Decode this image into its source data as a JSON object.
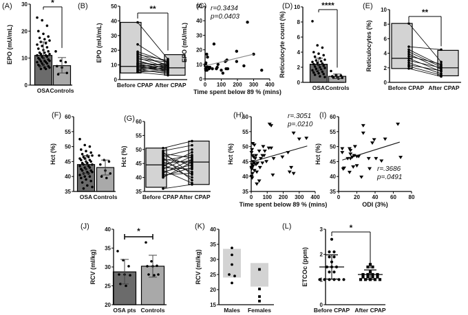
{
  "figure": {
    "colors": {
      "dark_bar": "#6b6b6b",
      "light_bar": "#a9a9a9",
      "box_fill": "#d3d3d3",
      "ink": "#000000",
      "line": "#333333"
    }
  },
  "chart_data": [
    {
      "id": "A",
      "panel_label": "(A)",
      "type": "bar",
      "ylabel": "EPO (mU/mL)",
      "ylim": [
        0,
        30
      ],
      "yticks": [
        0,
        10,
        20,
        30
      ],
      "categories": [
        "OSA",
        "Controls"
      ],
      "bar_means": [
        11,
        7.2
      ],
      "error_sd": [
        [
          7,
          16
        ],
        [
          4.5,
          10.2
        ]
      ],
      "points": [
        [
          25,
          24,
          22,
          20,
          19,
          18,
          17.5,
          17,
          16.5,
          16,
          15.5,
          15,
          14.5,
          14,
          13.5,
          13,
          12.5,
          12,
          12,
          11.5,
          11.5,
          11,
          11,
          10.5,
          10.5,
          10,
          10,
          9.5,
          9.5,
          9,
          9,
          8.8,
          8.5,
          8.5,
          8,
          8,
          7.5,
          7.5,
          7,
          7,
          6.5,
          6.5,
          6,
          6
        ],
        [
          12.5,
          9,
          8.5,
          7,
          6.5,
          4.5,
          4
        ]
      ],
      "significance": "*"
    },
    {
      "id": "B",
      "panel_label": "(B)",
      "type": "box-paired",
      "ylabel": "EPO (mU/mL)",
      "ylim": [
        0,
        50
      ],
      "yticks": [
        0,
        10,
        20,
        30,
        40,
        50
      ],
      "categories": [
        "Before CPAP",
        "After CPAP"
      ],
      "box": [
        {
          "min": 4.5,
          "median": 9,
          "max": 39
        },
        {
          "min": 3,
          "median": 8,
          "max": 17
        }
      ],
      "pairs": [
        [
          39,
          14
        ],
        [
          24,
          11
        ],
        [
          19,
          12
        ],
        [
          18,
          9
        ],
        [
          17,
          13
        ],
        [
          16,
          10
        ],
        [
          15,
          8
        ],
        [
          14,
          12
        ],
        [
          13,
          7
        ],
        [
          12,
          9
        ],
        [
          11,
          6
        ],
        [
          11,
          10
        ],
        [
          10,
          8
        ],
        [
          10,
          5
        ],
        [
          9,
          11
        ],
        [
          9,
          7
        ],
        [
          8,
          6
        ],
        [
          8,
          9
        ],
        [
          7,
          4
        ],
        [
          7,
          8
        ],
        [
          6,
          5
        ],
        [
          6,
          10
        ],
        [
          5,
          3
        ],
        [
          5,
          7
        ]
      ],
      "significance": "**"
    },
    {
      "id": "C",
      "panel_label": "(C)",
      "type": "scatter",
      "ylabel": "EPO (mU/mL)",
      "xlabel": "Time spent below 89 % (mins)",
      "xlim": [
        0,
        400
      ],
      "ylim": [
        0,
        50
      ],
      "xticks": [
        0,
        100,
        200,
        300,
        400
      ],
      "yticks": [
        0,
        10,
        20,
        30,
        40,
        50
      ],
      "r_text": "r=0.3434",
      "p_text": "p=0.0403",
      "fit": {
        "x": [
          0,
          300
        ],
        "y": [
          9,
          17
        ]
      },
      "points": [
        [
          262,
          39
        ],
        [
          55,
          24
        ],
        [
          195,
          19
        ],
        [
          300,
          17
        ],
        [
          10,
          17
        ],
        [
          15,
          15
        ],
        [
          135,
          13
        ],
        [
          125,
          12
        ],
        [
          195,
          12
        ],
        [
          80,
          10
        ],
        [
          240,
          9
        ],
        [
          5,
          11
        ],
        [
          2,
          10
        ],
        [
          8,
          9
        ],
        [
          20,
          8
        ],
        [
          30,
          8
        ],
        [
          45,
          7
        ],
        [
          70,
          7
        ],
        [
          75,
          8
        ],
        [
          100,
          6
        ],
        [
          110,
          4
        ],
        [
          130,
          7
        ],
        [
          140,
          7
        ],
        [
          350,
          6
        ],
        [
          3,
          7
        ],
        [
          6,
          8
        ],
        [
          12,
          6
        ],
        [
          25,
          7
        ],
        [
          1,
          9
        ],
        [
          4,
          6
        ]
      ]
    },
    {
      "id": "D",
      "panel_label": "(D)",
      "type": "bar",
      "ylabel": "Reticulocyte count (%)",
      "ylim": [
        0,
        10
      ],
      "yticks": [
        0,
        2,
        4,
        6,
        8,
        10
      ],
      "categories": [
        "OSA",
        "Controls"
      ],
      "bar_means": [
        2.4,
        0.8
      ],
      "error_sd": [
        [
          1.6,
          3.2
        ],
        [
          0.5,
          1.1
        ]
      ],
      "points": [
        [
          8.1,
          4.9,
          4.6,
          4.0,
          3.8,
          3.6,
          3.4,
          3.2,
          3.0,
          2.9,
          2.8,
          2.7,
          2.6,
          2.5,
          2.4,
          2.3,
          2.2,
          2.1,
          2.0,
          1.9,
          1.8,
          1.7,
          1.6,
          1.5,
          1.4,
          1.3,
          1.2,
          1.1,
          1.0,
          0.8,
          0.7
        ],
        [
          1.5,
          1.0,
          0.9,
          0.8,
          0.7,
          0.6,
          0.6,
          0.5
        ]
      ],
      "significance": "****"
    },
    {
      "id": "E",
      "panel_label": "(E)",
      "type": "box-paired",
      "ylabel": "Reticulocytes (%)",
      "ylim": [
        0,
        10
      ],
      "yticks": [
        0,
        2,
        4,
        6,
        8,
        10
      ],
      "categories": [
        "Before CPAP",
        "After CPAP"
      ],
      "box": [
        {
          "min": 1.9,
          "median": 3.3,
          "max": 8.1
        },
        {
          "min": 0.9,
          "median": 2.0,
          "max": 4.4
        }
      ],
      "pairs": [
        [
          8.1,
          2.8
        ],
        [
          4.9,
          4.5
        ],
        [
          4.5,
          2.3
        ],
        [
          4.2,
          2.1
        ],
        [
          3.9,
          1.8
        ],
        [
          3.6,
          2.5
        ],
        [
          3.3,
          1.5
        ],
        [
          3.0,
          2.0
        ],
        [
          2.7,
          1.2
        ],
        [
          2.4,
          1.6
        ],
        [
          2.2,
          1.0
        ],
        [
          1.9,
          0.8
        ]
      ],
      "significance": "**"
    },
    {
      "id": "F",
      "panel_label": "(F)",
      "type": "bar",
      "ylabel": "Hct (%)",
      "ylim": [
        35,
        60
      ],
      "yticks": [
        35,
        40,
        45,
        50,
        55,
        60
      ],
      "categories": [
        "OSA",
        "Controls"
      ],
      "bar_means": [
        44,
        43
      ],
      "error_sd": [
        [
          41,
          47
        ],
        [
          40.5,
          45.5
        ]
      ],
      "points": [
        [
          52.5,
          50.5,
          50,
          49,
          48.5,
          48,
          47.5,
          47,
          47,
          46.5,
          46.5,
          46,
          46,
          45.5,
          45.5,
          45,
          45,
          44.5,
          44.5,
          44,
          44,
          43.5,
          43.5,
          43,
          43,
          42.5,
          42.5,
          42,
          42,
          41.5,
          41.5,
          41,
          41,
          40.5,
          40,
          40,
          39.5,
          39,
          38.5,
          38,
          37,
          36.5,
          36
        ],
        [
          47,
          45.5,
          45,
          44,
          42,
          41,
          40,
          39.5
        ]
      ]
    },
    {
      "id": "G",
      "panel_label": "(G)",
      "type": "box-paired",
      "ylabel": "Hct (%)",
      "ylim": [
        35,
        60
      ],
      "yticks": [
        35,
        40,
        45,
        50,
        55,
        60
      ],
      "categories": [
        "Before CPAP",
        "After CPAP"
      ],
      "box": [
        {
          "min": 36.5,
          "median": 44.5,
          "max": 50.5
        },
        {
          "min": 37.5,
          "median": 45.5,
          "max": 53
        }
      ],
      "pairs": [
        [
          50.5,
          53
        ],
        [
          49.5,
          51.5
        ],
        [
          49,
          41
        ],
        [
          48.5,
          47
        ],
        [
          48,
          44
        ],
        [
          47.5,
          50
        ],
        [
          47,
          39
        ],
        [
          46.5,
          45
        ],
        [
          46,
          48
        ],
        [
          45.5,
          42
        ],
        [
          45,
          46
        ],
        [
          44.5,
          40
        ],
        [
          44,
          49
        ],
        [
          43.5,
          43
        ],
        [
          43,
          47.5
        ],
        [
          42.5,
          38
        ],
        [
          42,
          44.5
        ],
        [
          41.5,
          46.5
        ],
        [
          41,
          41.5
        ],
        [
          40.5,
          43.5
        ],
        [
          40,
          45.5
        ],
        [
          36,
          37.5
        ]
      ]
    },
    {
      "id": "H",
      "panel_label": "(H)",
      "type": "scatter",
      "ylabel": "Hct (%)",
      "xlabel": "Time spent below 89 % (mins)",
      "xlim": [
        0,
        400
      ],
      "ylim": [
        35,
        60
      ],
      "xticks": [
        0,
        100,
        200,
        300,
        400
      ],
      "yticks": [
        35,
        40,
        45,
        50,
        55,
        60
      ],
      "r_text": "r=.3051",
      "p_text": "p=.0210",
      "fit": {
        "x": [
          10,
          350
        ],
        "y": [
          45,
          50.2
        ]
      },
      "marker": "triangle-down",
      "points": [
        [
          115,
          57.5
        ],
        [
          125,
          57
        ],
        [
          265,
          54.5
        ],
        [
          300,
          52.5
        ],
        [
          345,
          52.8
        ],
        [
          10,
          51
        ],
        [
          20,
          50.5
        ],
        [
          75,
          50
        ],
        [
          50,
          48.5
        ],
        [
          85,
          48.5
        ],
        [
          110,
          49.5
        ],
        [
          125,
          49.5
        ],
        [
          5,
          49
        ],
        [
          2,
          48
        ],
        [
          8,
          47
        ],
        [
          15,
          46.5
        ],
        [
          25,
          46
        ],
        [
          30,
          47
        ],
        [
          70,
          47
        ],
        [
          80,
          47
        ],
        [
          60,
          46
        ],
        [
          140,
          46
        ],
        [
          195,
          46.5
        ],
        [
          230,
          48
        ],
        [
          95,
          45
        ],
        [
          10,
          45
        ],
        [
          18,
          44.5
        ],
        [
          30,
          44
        ],
        [
          40,
          44.5
        ],
        [
          5,
          44
        ],
        [
          12,
          43.5
        ],
        [
          55,
          43
        ],
        [
          3,
          42.5
        ],
        [
          20,
          42
        ],
        [
          250,
          43
        ],
        [
          240,
          41.5
        ],
        [
          265,
          41
        ],
        [
          8,
          41
        ],
        [
          35,
          41.5
        ],
        [
          2,
          40
        ],
        [
          6,
          39.5
        ],
        [
          135,
          40.5
        ],
        [
          50,
          38.5
        ],
        [
          35,
          37.5
        ],
        [
          70,
          44.5
        ],
        [
          1,
          43
        ]
      ]
    },
    {
      "id": "I",
      "panel_label": "(I)",
      "type": "scatter",
      "ylabel": "Hct (%)",
      "xlabel": "ODI (3%)",
      "xlim": [
        0,
        80
      ],
      "ylim": [
        35,
        60
      ],
      "xticks": [
        0,
        20,
        40,
        60,
        80
      ],
      "yticks": [
        35,
        40,
        45,
        50,
        55,
        60
      ],
      "r_text": "r=.3686",
      "p_text": "p=.0491",
      "fit": {
        "x": [
          4,
          67
        ],
        "y": [
          45.5,
          51.5
        ]
      },
      "marker": "triangle-down",
      "points": [
        [
          27,
          57
        ],
        [
          65,
          57.5
        ],
        [
          27,
          54.5
        ],
        [
          51,
          52.5
        ],
        [
          39,
          52.3
        ],
        [
          37,
          51.2
        ],
        [
          4,
          49.3
        ],
        [
          12,
          49.3
        ],
        [
          13,
          48.7
        ],
        [
          18,
          50
        ],
        [
          4,
          48
        ],
        [
          13,
          47.5
        ],
        [
          17,
          47
        ],
        [
          20,
          46.7
        ],
        [
          22,
          46.7
        ],
        [
          15,
          46.5
        ],
        [
          10,
          46
        ],
        [
          13,
          46
        ],
        [
          33,
          46
        ],
        [
          41,
          46
        ],
        [
          47,
          45.2
        ],
        [
          68,
          46.4
        ],
        [
          5,
          42.5
        ],
        [
          6,
          42.8
        ],
        [
          16,
          43.2
        ],
        [
          20,
          43.6
        ],
        [
          12,
          41.4
        ],
        [
          34,
          42.6
        ],
        [
          25,
          39.8
        ]
      ]
    },
    {
      "id": "J",
      "panel_label": "(J)",
      "type": "bar",
      "ylabel": "RCV (ml/kg)",
      "ylim": [
        20,
        40
      ],
      "yticks": [
        20,
        25,
        30,
        35,
        40
      ],
      "categories": [
        "OSA pts",
        "Controls"
      ],
      "bar_means": [
        28.7,
        30.2
      ],
      "error_sd": [
        [
          25.5,
          32
        ],
        [
          27.3,
          33.1
        ]
      ],
      "points": [
        [
          34.2,
          31.8,
          30.2,
          28,
          28,
          27.8,
          25.5,
          25
        ],
        [
          36.5,
          31.5,
          30.3,
          30.2,
          30.2,
          28,
          28,
          27.8
        ]
      ],
      "significance": "*"
    },
    {
      "id": "K",
      "panel_label": "(K)",
      "type": "floating-bar",
      "ylabel": "RCV (ml/kg)",
      "ylim": [
        15,
        40
      ],
      "yticks": [
        15,
        20,
        25,
        30,
        35,
        40
      ],
      "categories": [
        "Males",
        "Females"
      ],
      "range": [
        [
          24,
          33.5
        ],
        [
          21,
          28.8
        ]
      ],
      "points": [
        [
          33.8,
          31.5,
          28.3,
          25,
          24.5,
          22.2
        ],
        [
          26.7,
          20.2,
          17.7,
          16.2
        ]
      ]
    },
    {
      "id": "L",
      "panel_label": "(L)",
      "type": "dot",
      "ylabel": "ETCOc (ppm)",
      "ylim": [
        0,
        3
      ],
      "yticks": [
        0,
        1,
        2,
        3
      ],
      "categories": [
        "Before CPAP",
        "After CPAP"
      ],
      "means": [
        1.5,
        1.2
      ],
      "error_sd": [
        [
          1.02,
          1.98
        ],
        [
          1.0,
          1.38
        ]
      ],
      "points": [
        [
          2.6,
          2.1,
          2.1,
          1.9,
          1.9,
          1.7,
          1.5,
          1.5,
          1.5,
          1.3,
          1.3,
          1.0,
          1.0,
          1.0,
          1.0,
          1.0,
          1.0
        ],
        [
          1.6,
          1.5,
          1.5,
          1.3,
          1.2,
          1.2,
          1.2,
          1.2,
          1.1,
          1.1,
          1.1,
          1.1,
          1.0,
          1.0,
          1.0,
          1.0,
          1.0
        ]
      ],
      "significance": "*"
    }
  ]
}
